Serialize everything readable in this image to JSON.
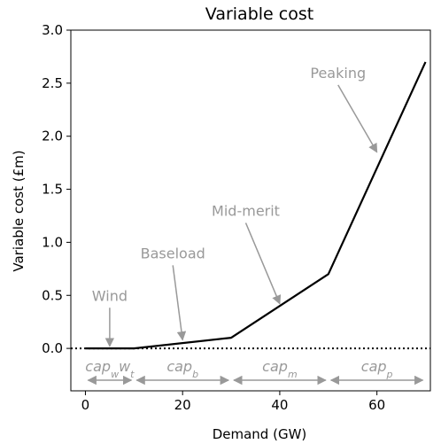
{
  "chart_data": {
    "type": "line",
    "title": "Variable cost",
    "xlabel": "Demand (GW)",
    "ylabel": "Variable cost (£m)",
    "xlim": [
      -3,
      71
    ],
    "ylim": [
      -0.4,
      3.0
    ],
    "xticks": [
      0,
      20,
      40,
      60
    ],
    "yticks": [
      0.0,
      0.5,
      1.0,
      1.5,
      2.0,
      2.5,
      3.0
    ],
    "grid": false,
    "series": [
      {
        "x": [
          0,
          10,
          30,
          50,
          70
        ],
        "y": [
          0.0,
          0.0,
          0.1,
          0.7,
          2.7
        ],
        "color": "#000000"
      }
    ],
    "reference_line": {
      "y": 0.0,
      "style": "dotted",
      "color": "#000000"
    },
    "annotations": [
      {
        "text": "Wind",
        "arrow_to": [
          5,
          0.02
        ],
        "text_at": [
          5,
          0.45
        ]
      },
      {
        "text": "Baseload",
        "arrow_to": [
          20,
          0.08
        ],
        "text_at": [
          18,
          0.85
        ]
      },
      {
        "text": "Mid-merit",
        "arrow_to": [
          40,
          0.42
        ],
        "text_at": [
          33,
          1.25
        ]
      },
      {
        "text": "Peaking",
        "arrow_to": [
          60,
          1.85
        ],
        "text_at": [
          52,
          2.55
        ]
      }
    ],
    "annotation_color": "#999999",
    "capacity_bands": [
      {
        "base": "cap",
        "sub1": "w",
        "mid": "w",
        "sub2": "t",
        "from": 0,
        "to": 10
      },
      {
        "base": "cap",
        "sub1": "b",
        "from": 10,
        "to": 30
      },
      {
        "base": "cap",
        "sub1": "m",
        "from": 30,
        "to": 50
      },
      {
        "base": "cap",
        "sub1": "p",
        "from": 50,
        "to": 70
      }
    ],
    "capacity_band_y": -0.3
  }
}
